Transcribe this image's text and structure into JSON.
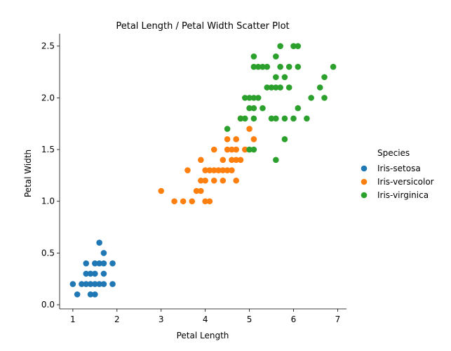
{
  "chart_data": {
    "type": "scatter",
    "title": "Petal Length / Petal Width Scatter Plot",
    "xlabel": "Petal Length",
    "ylabel": "Petal Width",
    "xlim": [
      0.7,
      7.2
    ],
    "ylim": [
      -0.04,
      2.62
    ],
    "xticks": [
      1,
      2,
      3,
      4,
      5,
      6,
      7
    ],
    "yticks": [
      0.0,
      0.5,
      1.0,
      1.5,
      2.0,
      2.5
    ],
    "grid": false,
    "legend": {
      "title": "Species",
      "placement": "right"
    },
    "series": [
      {
        "name": "Iris-setosa",
        "color": "#1f77b4",
        "points": [
          [
            1.0,
            0.2
          ],
          [
            1.1,
            0.1
          ],
          [
            1.2,
            0.2
          ],
          [
            1.3,
            0.2
          ],
          [
            1.3,
            0.3
          ],
          [
            1.3,
            0.4
          ],
          [
            1.4,
            0.1
          ],
          [
            1.4,
            0.2
          ],
          [
            1.4,
            0.3
          ],
          [
            1.5,
            0.1
          ],
          [
            1.5,
            0.2
          ],
          [
            1.5,
            0.3
          ],
          [
            1.5,
            0.4
          ],
          [
            1.6,
            0.2
          ],
          [
            1.6,
            0.4
          ],
          [
            1.6,
            0.6
          ],
          [
            1.7,
            0.2
          ],
          [
            1.7,
            0.3
          ],
          [
            1.7,
            0.4
          ],
          [
            1.7,
            0.5
          ],
          [
            1.9,
            0.2
          ],
          [
            1.9,
            0.4
          ]
        ]
      },
      {
        "name": "Iris-versicolor",
        "color": "#ff7f0e",
        "points": [
          [
            3.0,
            1.1
          ],
          [
            3.3,
            1.0
          ],
          [
            3.5,
            1.0
          ],
          [
            3.6,
            1.3
          ],
          [
            3.7,
            1.0
          ],
          [
            3.8,
            1.1
          ],
          [
            3.9,
            1.1
          ],
          [
            3.9,
            1.2
          ],
          [
            3.9,
            1.4
          ],
          [
            4.0,
            1.0
          ],
          [
            4.0,
            1.2
          ],
          [
            4.0,
            1.3
          ],
          [
            4.1,
            1.0
          ],
          [
            4.1,
            1.3
          ],
          [
            4.2,
            1.2
          ],
          [
            4.2,
            1.3
          ],
          [
            4.2,
            1.5
          ],
          [
            4.3,
            1.3
          ],
          [
            4.4,
            1.2
          ],
          [
            4.4,
            1.3
          ],
          [
            4.4,
            1.4
          ],
          [
            4.5,
            1.3
          ],
          [
            4.5,
            1.5
          ],
          [
            4.5,
            1.6
          ],
          [
            4.6,
            1.3
          ],
          [
            4.6,
            1.4
          ],
          [
            4.6,
            1.5
          ],
          [
            4.7,
            1.2
          ],
          [
            4.7,
            1.4
          ],
          [
            4.7,
            1.5
          ],
          [
            4.7,
            1.6
          ],
          [
            4.8,
            1.4
          ],
          [
            4.8,
            1.8
          ],
          [
            4.9,
            1.5
          ],
          [
            5.0,
            1.7
          ],
          [
            5.1,
            1.6
          ]
        ]
      },
      {
        "name": "Iris-virginica",
        "color": "#2ca02c",
        "points": [
          [
            4.5,
            1.7
          ],
          [
            4.8,
            1.8
          ],
          [
            4.9,
            1.8
          ],
          [
            4.9,
            2.0
          ],
          [
            5.0,
            1.5
          ],
          [
            5.0,
            1.9
          ],
          [
            5.0,
            2.0
          ],
          [
            5.1,
            1.5
          ],
          [
            5.1,
            1.8
          ],
          [
            5.1,
            1.9
          ],
          [
            5.1,
            2.0
          ],
          [
            5.1,
            2.3
          ],
          [
            5.1,
            2.4
          ],
          [
            5.2,
            2.0
          ],
          [
            5.2,
            2.3
          ],
          [
            5.3,
            1.9
          ],
          [
            5.3,
            2.3
          ],
          [
            5.4,
            2.1
          ],
          [
            5.4,
            2.3
          ],
          [
            5.5,
            1.8
          ],
          [
            5.5,
            2.1
          ],
          [
            5.6,
            1.4
          ],
          [
            5.6,
            1.8
          ],
          [
            5.6,
            2.1
          ],
          [
            5.6,
            2.2
          ],
          [
            5.6,
            2.4
          ],
          [
            5.7,
            2.1
          ],
          [
            5.7,
            2.3
          ],
          [
            5.7,
            2.5
          ],
          [
            5.8,
            1.6
          ],
          [
            5.8,
            1.8
          ],
          [
            5.8,
            2.2
          ],
          [
            5.9,
            2.1
          ],
          [
            5.9,
            2.3
          ],
          [
            6.0,
            1.8
          ],
          [
            6.0,
            2.5
          ],
          [
            6.1,
            1.9
          ],
          [
            6.1,
            2.3
          ],
          [
            6.1,
            2.5
          ],
          [
            6.3,
            1.8
          ],
          [
            6.4,
            2.0
          ],
          [
            6.6,
            2.1
          ],
          [
            6.7,
            2.0
          ],
          [
            6.7,
            2.2
          ],
          [
            6.9,
            2.3
          ]
        ]
      }
    ]
  }
}
